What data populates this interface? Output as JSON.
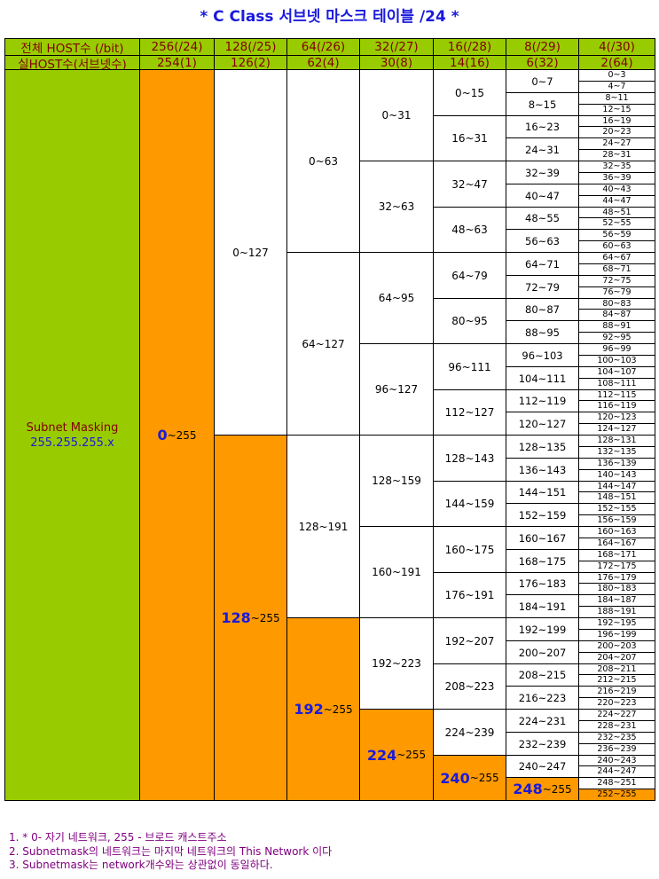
{
  "title": "* C Class 서브넷 마스크 테이블 /24 *",
  "headers": {
    "row1": [
      "전체 HOST수 (/bit)",
      "256(/24)",
      "128(/25)",
      "64(/26)",
      "32(/27)",
      "16(/28)",
      "8(/29)",
      "4(/30)"
    ],
    "row2": [
      "실HOST수(서브넷수)",
      "254(1)",
      "126(2)",
      "62(4)",
      "30(8)",
      "14(16)",
      "6(32)",
      "2(64)"
    ]
  },
  "mask_label": "Subnet Masking",
  "mask_value": "255.255.255.x",
  "last_suffix": "~255",
  "notes": [
    "1. * 0- 자기 네트워크, 255 - 브로드 캐스트주소",
    "2. Subnetmask의 네트워크는 마지막 네트워크의 This Network 이다",
    "3. Subnetmask는 network개수와는 상관없이 동일하다."
  ],
  "colors": {
    "green": "#99cc00",
    "orange": "#ff9900",
    "title": "#1a1adc",
    "header_text": "#800000",
    "notes": "#800080"
  }
}
